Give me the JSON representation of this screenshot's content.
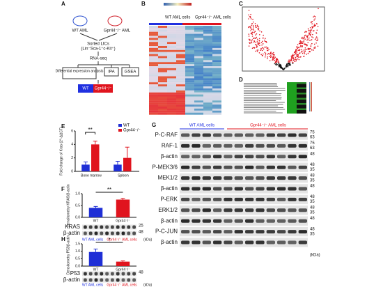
{
  "panel_a": {
    "label": "A",
    "mouse_wt": "WT AML",
    "mouse_ko": "Gpr44⁻/⁻ AML",
    "sort": "Sorted LICs",
    "sort_detail": "(Lin⁻Sca-1⁺c-Kit⁺)",
    "seq": "RNA-seq",
    "dea": "Differential expression analysis",
    "ipa": "IPA",
    "gsea": "GSEA",
    "wt": "WT",
    "ko": "Gpr44⁻/⁻"
  },
  "panel_b": {
    "label": "B",
    "wt": "WT AML cells",
    "ko": "Gpr44⁻/⁻ AML cells"
  },
  "panel_c": {
    "label": "C"
  },
  "panel_d": {
    "label": "D"
  },
  "chart_data": [
    {
      "type": "bar",
      "panel": "E",
      "y_label": "Fold change of Kras (2^-ΔΔCT)",
      "categories": [
        "Bone marrow",
        "Spleen"
      ],
      "series": [
        {
          "name": "WT",
          "color": "#1f2fd6",
          "values": [
            1,
            1
          ],
          "errors": [
            0.4,
            0.5
          ]
        },
        {
          "name": "Gpr44⁻/⁻",
          "color": "#e0141e",
          "values": [
            4,
            2
          ],
          "errors": [
            0.5,
            1.6
          ]
        }
      ],
      "ylim": [
        0,
        6
      ],
      "yticks": [
        0,
        2,
        4,
        6
      ],
      "annotation": "**"
    },
    {
      "type": "bar",
      "panel": "F",
      "y_label": "Densitometry KRAS/β-actin",
      "categories": [
        "WT",
        "Gpr44⁻/⁻"
      ],
      "values": [
        0.4,
        0.75
      ],
      "errors": [
        0.06,
        0.05
      ],
      "colors": [
        "#1f2fd6",
        "#e0141e"
      ],
      "ylim": [
        0,
        1
      ],
      "yticks": [
        {
          "value": 0,
          "label": "0.0"
        },
        {
          "value": 0.5,
          "label": "0.5"
        },
        {
          "value": 1,
          "label": "1.0"
        }
      ],
      "annotation": "**"
    },
    {
      "type": "bar",
      "panel": "H",
      "y_label": "Densitometry P53/β-actin",
      "categories": [
        "WT",
        "Gpr44⁻/⁻"
      ],
      "values": [
        0.95,
        0.3
      ],
      "errors": [
        0.2,
        0.05
      ],
      "colors": [
        "#1f2fd6",
        "#e0141e"
      ],
      "ylim": [
        0,
        1.5
      ],
      "yticks": [
        {
          "value": 0,
          "label": "0.0"
        },
        {
          "value": 0.5,
          "label": "0.5"
        },
        {
          "value": 1,
          "label": "1.0"
        },
        {
          "value": 1.5,
          "label": "1.5"
        }
      ],
      "annotation": "*"
    }
  ],
  "panel_f_blot": {
    "rows": [
      {
        "name": "KRAS",
        "markers": [
          "25"
        ]
      },
      {
        "name": "β-actin",
        "markers": [
          "48"
        ]
      }
    ],
    "wt": "WT AML cells",
    "ko": "Gpr44⁻/⁻ AML cells",
    "unit": "(kDa)"
  },
  "panel_h_blot": {
    "rows": [
      {
        "name": "P53",
        "markers": [
          "48"
        ]
      },
      {
        "name": "β-actin",
        "markers": []
      }
    ],
    "wt": "WT AML cells",
    "ko": "Gpr44⁻/⁻ AML cells",
    "unit": "(kDa)"
  },
  "panel_g": {
    "label": "G",
    "wt": "WT AML cells",
    "ko": "Gpr44⁻/⁻ AML cells",
    "unit": "(kDa)",
    "rows": [
      {
        "name": "P-C-RAF",
        "markers": [
          "75",
          "63"
        ]
      },
      {
        "name": "RAF-1",
        "markers": [
          "75",
          "63"
        ]
      },
      {
        "name": "β-actin",
        "markers": [
          "48"
        ]
      },
      {
        "name": "P-MEK3/6",
        "markers": [
          "48",
          "35"
        ]
      },
      {
        "name": "MEK1/2",
        "markers": [
          "48",
          "35"
        ]
      },
      {
        "name": "β-actin",
        "markers": [
          "48"
        ]
      },
      {
        "name": "P-ERK",
        "markers": [
          "48",
          "35"
        ]
      },
      {
        "name": "ERK1/2",
        "markers": [
          "48",
          "35"
        ]
      },
      {
        "name": "β-actin",
        "markers": [
          "48"
        ]
      },
      {
        "name": "P-C-JUN",
        "markers": [
          "48",
          "35"
        ]
      },
      {
        "name": "β-actin",
        "markers": []
      }
    ]
  }
}
